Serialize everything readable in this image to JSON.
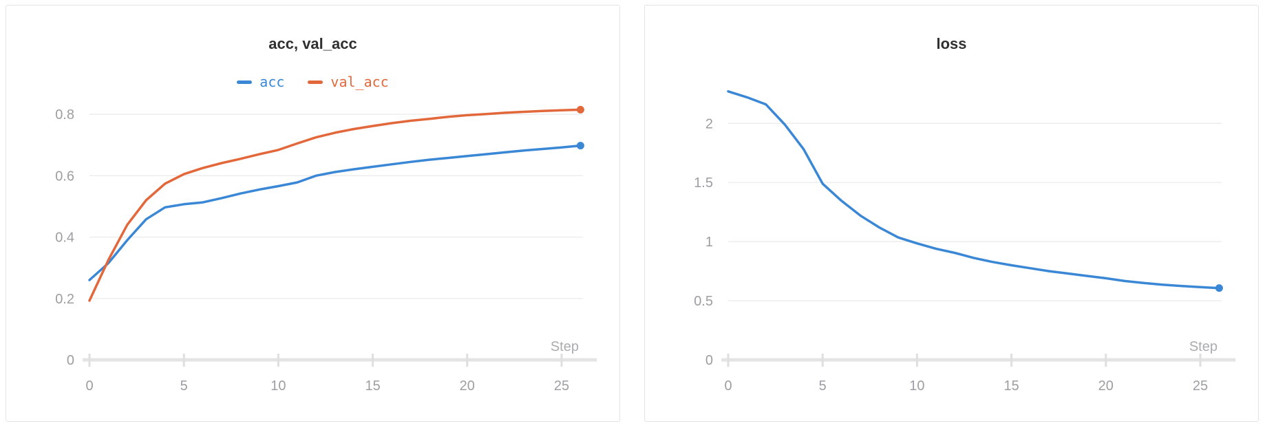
{
  "page": {
    "background": "#ffffff"
  },
  "theme": {
    "series_blue": "#3a87d6",
    "series_orange": "#e2683c",
    "gridline": "#ececec",
    "axis_bar": "#e4e4e4",
    "axis_tick": "#dfdfdf",
    "tick_label": "#9b9ea3",
    "step_label": "#a9acb0",
    "title_color": "#303030",
    "panel_border": "#e3e3e3"
  },
  "chart_data": [
    {
      "type": "line",
      "title": "acc, val_acc",
      "xlabel": "Step",
      "grid": true,
      "legend_position": "top",
      "x": [
        0,
        1,
        2,
        3,
        4,
        5,
        6,
        7,
        8,
        9,
        10,
        11,
        12,
        13,
        14,
        15,
        16,
        17,
        18,
        19,
        20,
        21,
        22,
        23,
        24,
        25,
        26
      ],
      "x_ticks": [
        0,
        5,
        10,
        15,
        20,
        25
      ],
      "y_ticks": [
        0,
        0.2,
        0.4,
        0.6,
        0.8
      ],
      "y_tick_labels": [
        "0",
        "0.2",
        "0.4",
        "0.6",
        "0.8"
      ],
      "ylim": [
        0,
        0.863
      ],
      "legend": [
        {
          "label": "acc",
          "color": "#3a87d6"
        },
        {
          "label": "val_acc",
          "color": "#e2683c"
        }
      ],
      "series": [
        {
          "name": "acc",
          "color": "#3a87d6",
          "values": [
            0.26,
            0.315,
            0.39,
            0.458,
            0.497,
            0.507,
            0.513,
            0.527,
            0.542,
            0.555,
            0.566,
            0.578,
            0.6,
            0.612,
            0.621,
            0.629,
            0.637,
            0.645,
            0.652,
            0.658,
            0.664,
            0.67,
            0.676,
            0.682,
            0.687,
            0.692,
            0.698
          ]
        },
        {
          "name": "val_acc",
          "color": "#e2683c",
          "values": [
            0.193,
            0.325,
            0.44,
            0.52,
            0.574,
            0.605,
            0.625,
            0.641,
            0.655,
            0.67,
            0.684,
            0.705,
            0.725,
            0.74,
            0.752,
            0.762,
            0.771,
            0.779,
            0.785,
            0.792,
            0.797,
            0.801,
            0.805,
            0.808,
            0.811,
            0.813,
            0.815
          ]
        }
      ]
    },
    {
      "type": "line",
      "title": "loss",
      "xlabel": "Step",
      "grid": true,
      "legend_position": "none",
      "x": [
        0,
        1,
        2,
        3,
        4,
        5,
        6,
        7,
        8,
        9,
        10,
        11,
        12,
        13,
        14,
        15,
        16,
        17,
        18,
        19,
        20,
        21,
        22,
        23,
        24,
        25,
        26
      ],
      "x_ticks": [
        0,
        5,
        10,
        15,
        20,
        25
      ],
      "y_ticks": [
        0,
        0.5,
        1,
        1.5,
        2
      ],
      "y_tick_labels": [
        "0",
        "0.5",
        "1",
        "1.5",
        "2"
      ],
      "ylim": [
        0,
        2.24
      ],
      "legend": [],
      "series": [
        {
          "name": "loss",
          "color": "#3a87d6",
          "values": [
            2.27,
            2.22,
            2.16,
            1.99,
            1.78,
            1.49,
            1.345,
            1.22,
            1.12,
            1.035,
            0.985,
            0.94,
            0.905,
            0.862,
            0.828,
            0.8,
            0.775,
            0.75,
            0.73,
            0.71,
            0.69,
            0.667,
            0.65,
            0.636,
            0.625,
            0.615,
            0.607
          ]
        }
      ]
    }
  ]
}
